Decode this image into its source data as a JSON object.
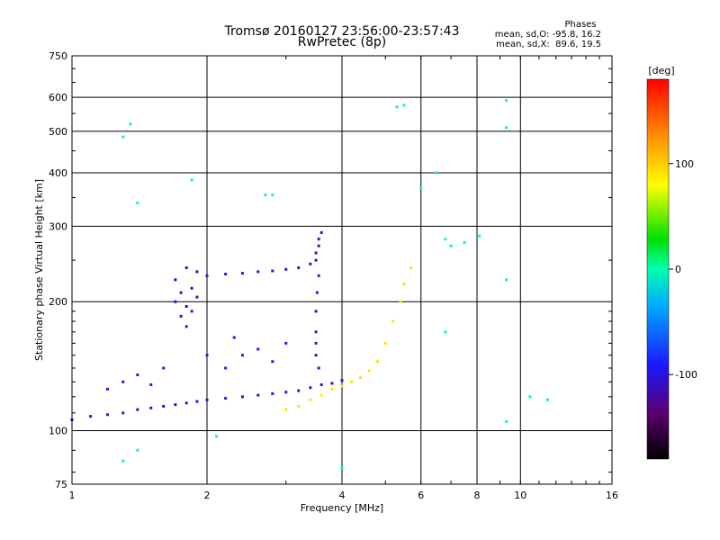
{
  "chart_data": {
    "type": "scatter",
    "title": "Tromsø 20160127 23:56:00-23:57:43",
    "subtitle": "RwPretec (8p)",
    "xlabel": "Frequency [MHz]",
    "ylabel": "Stationary phase Virtual Height [km]",
    "x_scale": "log",
    "y_scale": "log",
    "xlim": [
      1,
      16
    ],
    "ylim": [
      75,
      750
    ],
    "x_ticks": [
      "1",
      "2",
      "4",
      "6",
      "8",
      "10",
      "16"
    ],
    "y_ticks": [
      "75",
      "100",
      "200",
      "300",
      "400",
      "500",
      "600",
      "750"
    ],
    "grid": true,
    "phase_stats": {
      "title": "Phases",
      "line_o": "mean, sd,O: -95.8, 16.2",
      "line_x": "mean, sd,X:  89.6, 19.5"
    },
    "colorbar": {
      "label": "[deg]",
      "range": [
        -180,
        180
      ],
      "ticks": [
        "100",
        "0",
        "-100"
      ],
      "tick_values": [
        100,
        0,
        -100
      ]
    },
    "series": [
      {
        "description": "O-mode trace, low heights",
        "phase": -100,
        "points": [
          [
            1.0,
            106
          ],
          [
            1.1,
            108
          ],
          [
            1.2,
            109
          ],
          [
            1.3,
            110
          ],
          [
            1.4,
            112
          ],
          [
            1.5,
            113
          ],
          [
            1.6,
            114
          ],
          [
            1.7,
            115
          ],
          [
            1.8,
            116
          ],
          [
            1.9,
            117
          ],
          [
            2.0,
            118
          ],
          [
            2.2,
            119
          ],
          [
            2.4,
            120
          ],
          [
            2.6,
            121
          ],
          [
            2.8,
            122
          ],
          [
            3.0,
            123
          ],
          [
            3.2,
            124
          ],
          [
            3.4,
            126
          ],
          [
            3.6,
            128
          ],
          [
            3.8,
            129
          ],
          [
            4.0,
            131
          ]
        ]
      },
      {
        "description": "Blob around 1.7-1.9 MHz",
        "phase": -110,
        "points": [
          [
            1.7,
            200
          ],
          [
            1.75,
            210
          ],
          [
            1.8,
            195
          ],
          [
            1.85,
            215
          ],
          [
            1.9,
            205
          ],
          [
            1.7,
            225
          ],
          [
            1.8,
            240
          ],
          [
            1.9,
            235
          ],
          [
            1.75,
            185
          ],
          [
            1.85,
            190
          ]
        ]
      },
      {
        "description": "Upper O-mode trace",
        "phase": -105,
        "points": [
          [
            2.0,
            230
          ],
          [
            2.2,
            232
          ],
          [
            2.4,
            233
          ],
          [
            2.6,
            235
          ],
          [
            2.8,
            236
          ],
          [
            3.0,
            238
          ],
          [
            3.2,
            240
          ],
          [
            3.4,
            245
          ],
          [
            3.5,
            260
          ],
          [
            3.55,
            280
          ]
        ]
      },
      {
        "description": "Vertical near 3.5 MHz",
        "phase": -100,
        "points": [
          [
            3.5,
            150
          ],
          [
            3.5,
            170
          ],
          [
            3.5,
            190
          ],
          [
            3.52,
            210
          ],
          [
            3.55,
            230
          ],
          [
            3.5,
            250
          ],
          [
            3.55,
            270
          ],
          [
            3.6,
            290
          ],
          [
            3.55,
            140
          ],
          [
            3.5,
            160
          ]
        ]
      },
      {
        "description": "X-mode trace",
        "phase": 90,
        "points": [
          [
            3.0,
            112
          ],
          [
            3.2,
            114
          ],
          [
            3.4,
            118
          ],
          [
            3.6,
            121
          ],
          [
            3.8,
            125
          ],
          [
            4.0,
            127
          ],
          [
            4.2,
            130
          ],
          [
            4.4,
            133
          ],
          [
            4.6,
            138
          ],
          [
            4.8,
            145
          ],
          [
            5.0,
            160
          ],
          [
            5.2,
            180
          ],
          [
            5.4,
            200
          ],
          [
            5.5,
            220
          ],
          [
            5.7,
            240
          ]
        ]
      },
      {
        "description": "Scattered mid points",
        "phase": -90,
        "points": [
          [
            1.2,
            125
          ],
          [
            1.3,
            130
          ],
          [
            1.4,
            135
          ],
          [
            1.5,
            128
          ],
          [
            2.2,
            140
          ],
          [
            2.4,
            150
          ],
          [
            2.6,
            155
          ],
          [
            2.8,
            145
          ],
          [
            3.0,
            160
          ],
          [
            1.6,
            140
          ],
          [
            2.0,
            150
          ],
          [
            2.3,
            165
          ],
          [
            1.8,
            175
          ]
        ]
      },
      {
        "description": "Sparse outliers",
        "phase": 0,
        "points": [
          [
            1.35,
            520
          ],
          [
            1.4,
            340
          ],
          [
            1.3,
            485
          ],
          [
            1.85,
            385
          ],
          [
            2.7,
            355
          ],
          [
            2.8,
            355
          ],
          [
            5.3,
            570
          ],
          [
            5.5,
            575
          ],
          [
            6.0,
            370
          ],
          [
            6.5,
            400
          ],
          [
            6.8,
            280
          ],
          [
            7.0,
            270
          ],
          [
            7.5,
            275
          ],
          [
            8.1,
            285
          ],
          [
            9.3,
            590
          ],
          [
            9.3,
            510
          ],
          [
            9.3,
            225
          ],
          [
            9.3,
            105
          ],
          [
            10.5,
            120
          ],
          [
            11.5,
            118
          ],
          [
            1.3,
            85
          ],
          [
            1.4,
            90
          ],
          [
            2.1,
            97
          ],
          [
            4.0,
            82
          ],
          [
            6.8,
            170
          ]
        ]
      }
    ]
  }
}
